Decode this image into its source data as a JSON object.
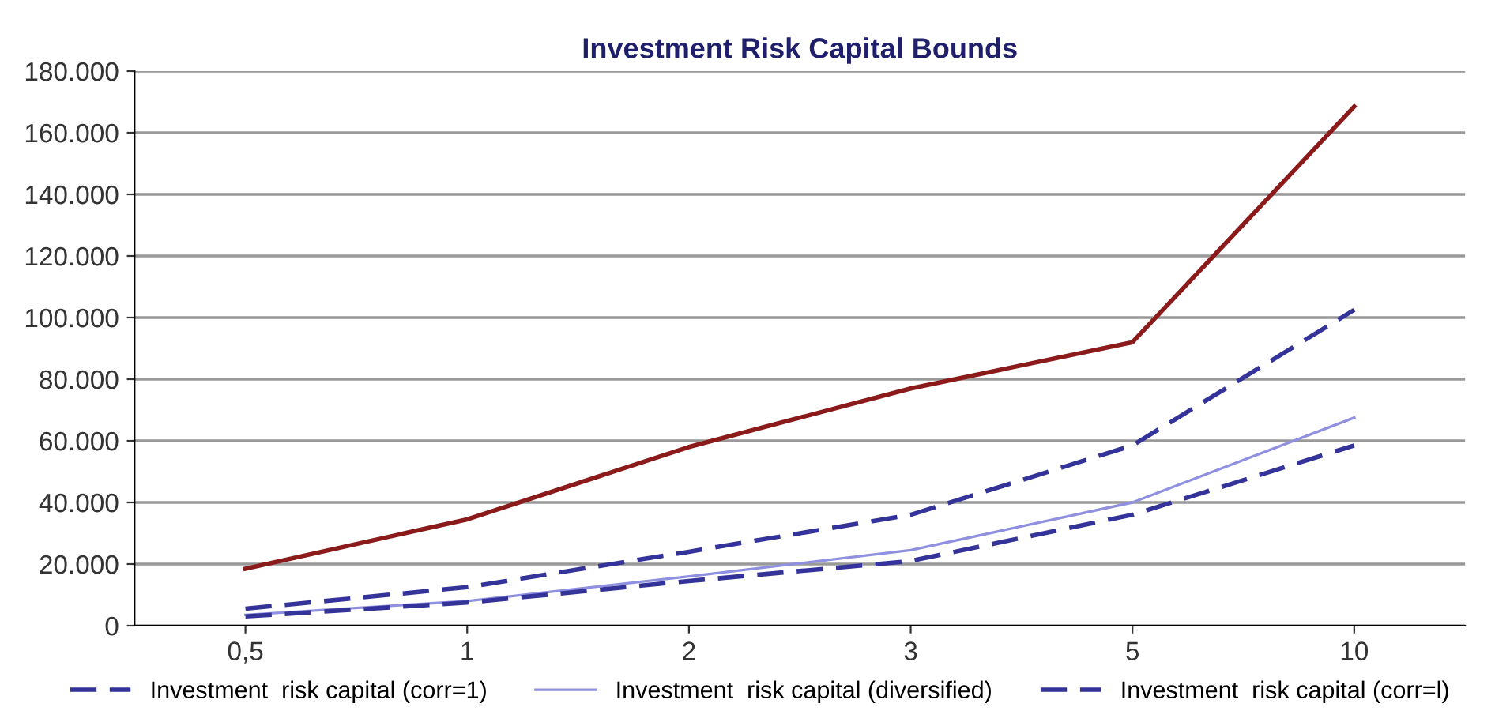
{
  "chart_data": {
    "type": "line",
    "title": "Investment Risk Capital Bounds",
    "categories": [
      "0,5",
      "1",
      "2",
      "3",
      "5",
      "10"
    ],
    "series": [
      {
        "color": "#8b1a1a",
        "line_style": "solid",
        "values": [
          18500,
          34500,
          58000,
          77000,
          92000,
          168500
        ]
      },
      {
        "name": "Investment  risk capital (corr=1)",
        "color": "#33339a",
        "line_style": "dashed",
        "values": [
          5500,
          12500,
          24000,
          36000,
          58500,
          102500
        ]
      },
      {
        "name": "Investment  risk capital (diversified)",
        "color": "#9090e0",
        "line_style": "solid",
        "values": [
          3500,
          8000,
          16000,
          24500,
          40000,
          67500
        ]
      },
      {
        "name": "Investment  risk capital (corr=l)",
        "color": "#33339a",
        "line_style": "dashed",
        "values": [
          3000,
          7500,
          14500,
          21000,
          36000,
          58500
        ]
      }
    ],
    "ylim": [
      0,
      180000
    ],
    "yticks": [
      0,
      {
        "value": 20000,
        "label": "20.000"
      },
      {
        "value": 40000,
        "label": "40.000"
      },
      {
        "value": 60000,
        "label": "60.000"
      },
      {
        "value": 80000,
        "label": "80.000"
      },
      {
        "value": 100000,
        "label": "100.000"
      },
      {
        "value": 120000,
        "label": "120.000"
      },
      {
        "value": 140000,
        "label": "140.000"
      },
      {
        "value": 160000,
        "label": "160.000"
      },
      {
        "value": 180000,
        "label": "180.000"
      }
    ],
    "grid": "y",
    "legend": "bottom"
  }
}
